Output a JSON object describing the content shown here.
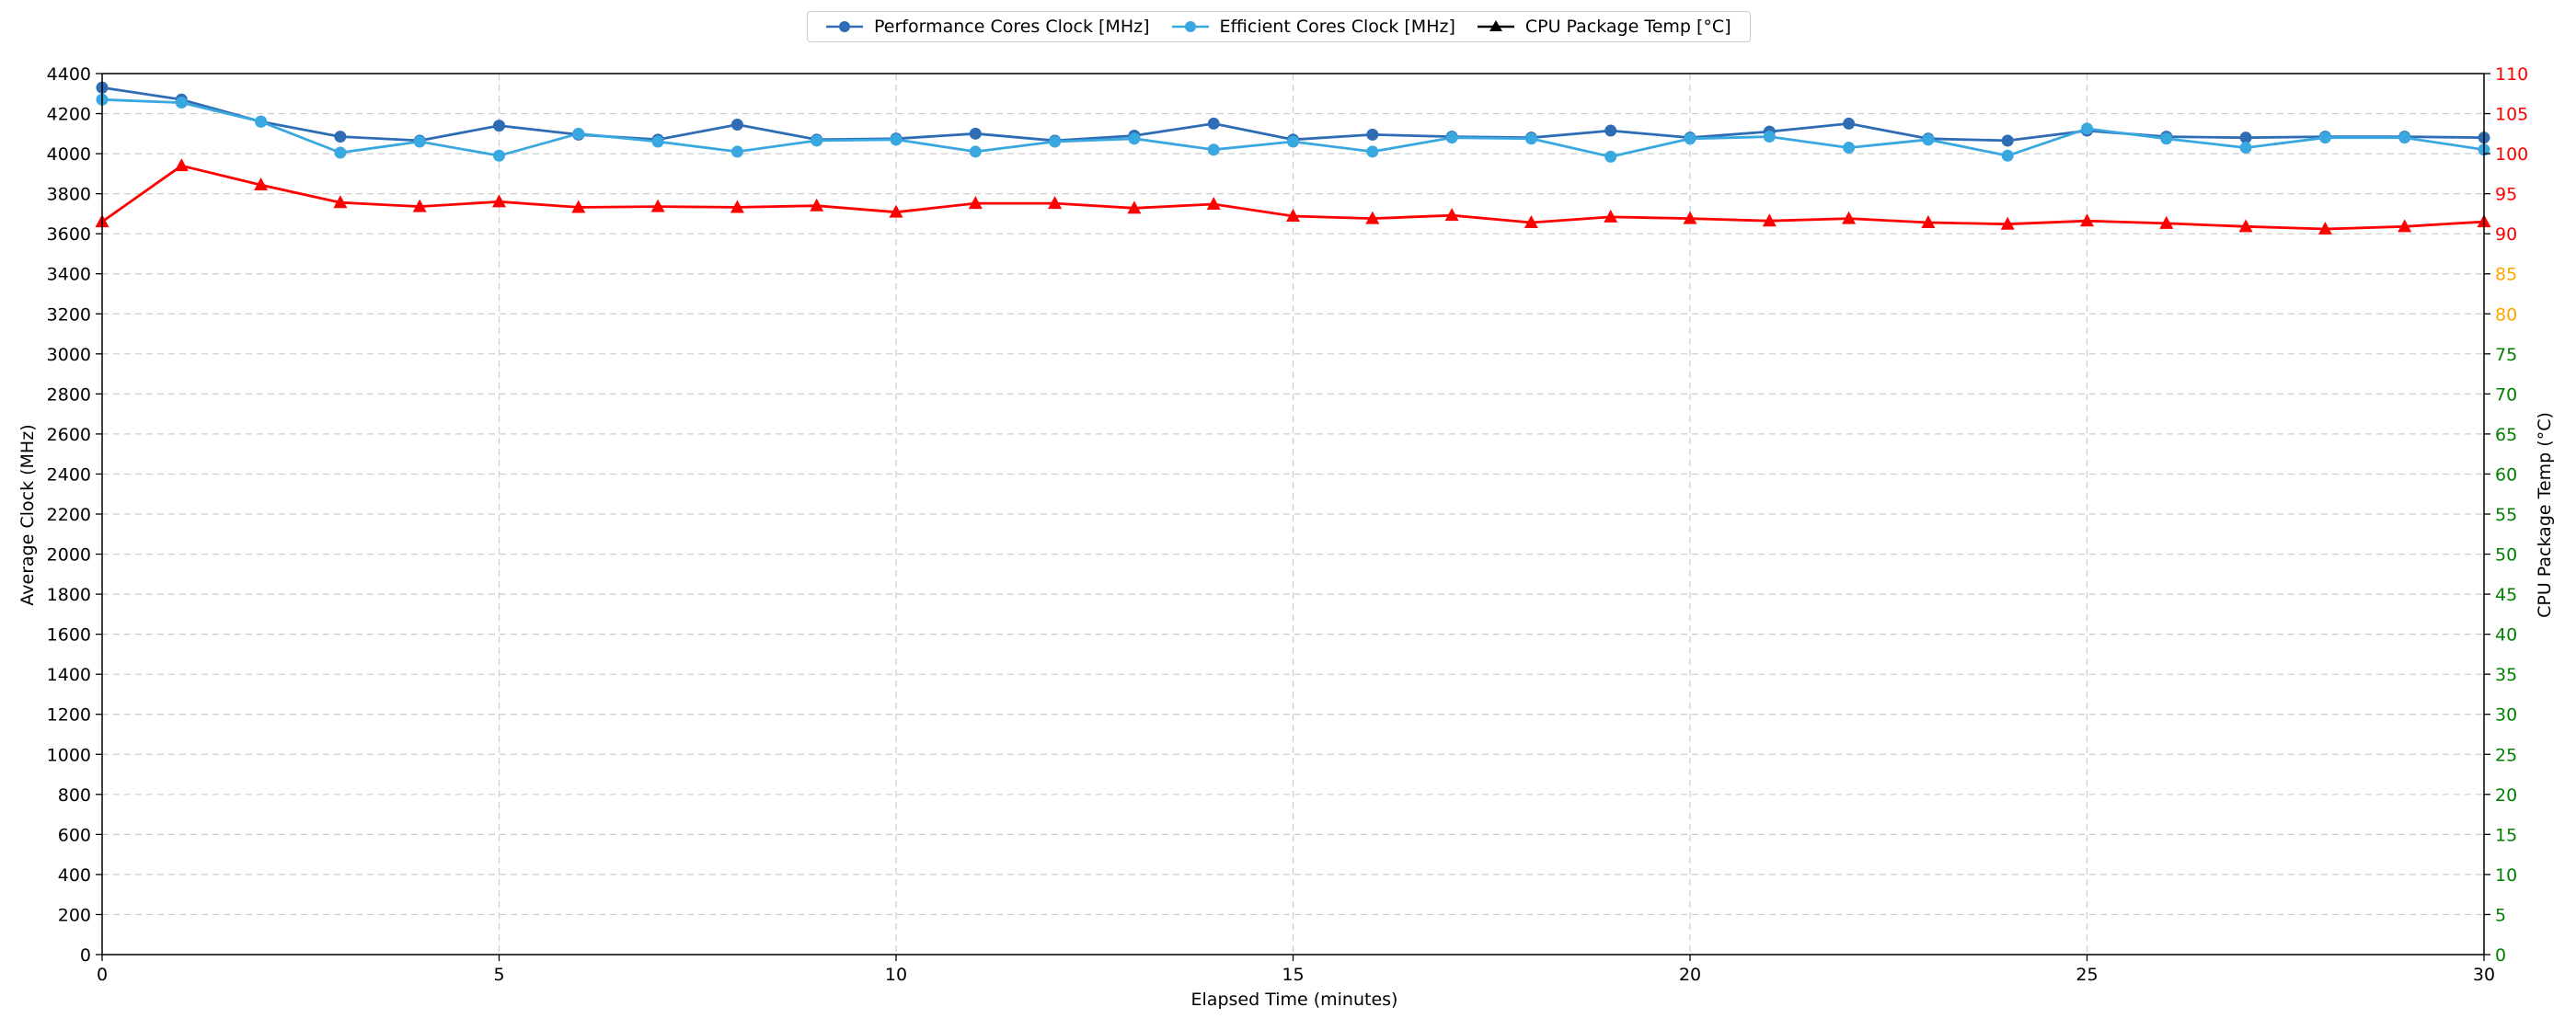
{
  "chart_data": {
    "type": "line",
    "xlabel": "Elapsed Time (minutes)",
    "ylabel": "Average Clock (MHz)",
    "y2label": "CPU Package Temp (°C)",
    "xlim": [
      0,
      30
    ],
    "ylim": [
      0,
      4400
    ],
    "y2lim": [
      0,
      110
    ],
    "x_ticks": [
      0,
      5,
      10,
      15,
      20,
      25,
      30
    ],
    "y_ticks": [
      0,
      200,
      400,
      600,
      800,
      1000,
      1200,
      1400,
      1600,
      1800,
      2000,
      2200,
      2400,
      2600,
      2800,
      3000,
      3200,
      3400,
      3600,
      3800,
      4000,
      4200,
      4400
    ],
    "y2_ticks": [
      0,
      5,
      10,
      15,
      20,
      25,
      30,
      35,
      40,
      45,
      50,
      55,
      60,
      65,
      70,
      75,
      80,
      85,
      90,
      95,
      100,
      105,
      110
    ],
    "y2_tick_colors": {
      "green_max": 75,
      "orange_max": 85,
      "green": "#008000",
      "orange": "#FFA500",
      "red": "#FF0000"
    },
    "grid": true,
    "legend_position": "top-center",
    "x": [
      0,
      1,
      2,
      3,
      4,
      5,
      6,
      7,
      8,
      9,
      10,
      11,
      12,
      13,
      14,
      15,
      16,
      17,
      18,
      19,
      20,
      21,
      22,
      23,
      24,
      25,
      26,
      27,
      28,
      29,
      30
    ],
    "series": [
      {
        "name": "Performance Cores Clock [MHz]",
        "axis": "left",
        "color": "#2E6DB4",
        "marker": "circle",
        "values": [
          4330,
          4270,
          4160,
          4085,
          4065,
          4140,
          4095,
          4070,
          4145,
          4070,
          4075,
          4100,
          4065,
          4090,
          4150,
          4070,
          4095,
          4085,
          4080,
          4115,
          4080,
          4110,
          4150,
          4075,
          4065,
          4115,
          4085,
          4080,
          4085,
          4085,
          4080
        ]
      },
      {
        "name": "Efficient Cores Clock [MHz]",
        "axis": "left",
        "color": "#3AA8E0",
        "marker": "circle",
        "values": [
          4270,
          4255,
          4160,
          4005,
          4060,
          3990,
          4100,
          4060,
          4010,
          4065,
          4070,
          4010,
          4060,
          4075,
          4020,
          4060,
          4010,
          4080,
          4075,
          3985,
          4075,
          4085,
          4030,
          4070,
          3990,
          4125,
          4075,
          4030,
          4080,
          4080,
          4020
        ]
      },
      {
        "name": "CPU Package Temp [°C]",
        "axis": "right",
        "color": "#FF0000",
        "legend_color": "#000000",
        "marker": "triangle",
        "values": [
          91.5,
          98.5,
          96.1,
          93.9,
          93.4,
          94.0,
          93.3,
          93.4,
          93.3,
          93.5,
          92.7,
          93.8,
          93.8,
          93.2,
          93.7,
          92.2,
          91.9,
          92.3,
          91.4,
          92.1,
          91.9,
          91.6,
          91.9,
          91.4,
          91.2,
          91.6,
          91.3,
          90.9,
          90.6,
          90.9,
          91.5
        ]
      }
    ]
  }
}
